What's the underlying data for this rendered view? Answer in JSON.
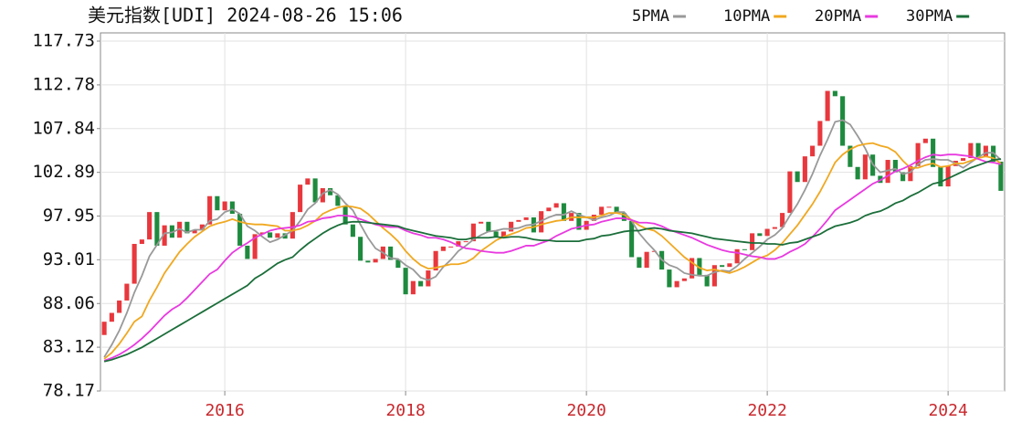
{
  "chart_data": {
    "type": "candlestick",
    "title": "美元指数[UDI] 2024-08-26 15:06",
    "up_color": "#e8383d",
    "down_color": "#1e8a3e",
    "ylim": [
      78.17,
      117.73
    ],
    "yticks": [
      78.17,
      83.12,
      88.06,
      93.01,
      97.95,
      102.89,
      107.84,
      112.78,
      117.73
    ],
    "grid": true,
    "legend": "top-right",
    "categories": [
      null,
      null,
      null,
      null,
      null,
      null,
      null,
      null,
      null,
      null,
      null,
      null,
      null,
      null,
      null,
      null,
      "2016",
      null,
      null,
      null,
      null,
      null,
      null,
      null,
      null,
      null,
      null,
      null,
      null,
      null,
      null,
      null,
      null,
      null,
      null,
      null,
      null,
      null,
      null,
      null,
      "2018",
      null,
      null,
      null,
      null,
      null,
      null,
      null,
      null,
      null,
      null,
      null,
      null,
      null,
      null,
      null,
      null,
      null,
      null,
      null,
      null,
      null,
      null,
      null,
      "2020",
      null,
      null,
      null,
      null,
      null,
      null,
      null,
      null,
      null,
      null,
      null,
      null,
      null,
      null,
      null,
      null,
      null,
      null,
      null,
      null,
      null,
      null,
      null,
      "2022",
      null,
      null,
      null,
      null,
      null,
      null,
      null,
      null,
      null,
      null,
      null,
      null,
      null,
      null,
      null,
      null,
      null,
      null,
      null,
      null,
      null,
      null,
      null,
      "2024",
      null,
      null,
      null,
      null,
      null,
      null,
      null
    ],
    "open": [
      84.5,
      86.0,
      87.0,
      88.4,
      90.3,
      94.8,
      95.3,
      98.4,
      94.6,
      96.9,
      95.5,
      97.3,
      96.0,
      96.4,
      97.0,
      100.2,
      98.6,
      99.6,
      98.2,
      94.6,
      93.1,
      95.9,
      96.1,
      95.5,
      96.0,
      95.4,
      98.4,
      101.5,
      102.2,
      99.5,
      101.1,
      100.3,
      99.1,
      97.0,
      95.6,
      92.9,
      92.7,
      93.1,
      94.5,
      93.0,
      92.1,
      89.1,
      90.6,
      90.0,
      91.8,
      94.0,
      94.5,
      94.5,
      95.1,
      95.1,
      97.1,
      97.3,
      96.2,
      95.6,
      96.2,
      97.3,
      97.5,
      97.8,
      96.1,
      98.5,
      98.9,
      99.4,
      97.4,
      98.3,
      96.4,
      97.4,
      98.1,
      99.0,
      99.0,
      98.3,
      97.4,
      93.3,
      92.1,
      93.9,
      94.0,
      91.9,
      89.9,
      90.6,
      90.9,
      93.2,
      91.3,
      90.0,
      92.4,
      92.2,
      92.6,
      94.2,
      94.1,
      96.0,
      95.7,
      96.5,
      96.7,
      98.3,
      103.0,
      101.8,
      104.7,
      105.9,
      108.7,
      112.1,
      111.5,
      105.9,
      103.5,
      102.1,
      104.9,
      102.5,
      101.7,
      104.3,
      102.9,
      101.9,
      103.6,
      106.2,
      106.7,
      103.5,
      101.3,
      103.6,
      104.2,
      104.5,
      106.2,
      104.6,
      105.9,
      104.1
    ],
    "close": [
      86.0,
      87.0,
      88.4,
      90.3,
      94.8,
      95.3,
      98.4,
      94.6,
      96.9,
      95.5,
      97.3,
      96.0,
      96.4,
      97.0,
      100.2,
      98.6,
      99.6,
      98.2,
      94.6,
      93.1,
      95.9,
      96.1,
      95.5,
      96.0,
      95.4,
      98.4,
      101.5,
      102.2,
      99.5,
      101.1,
      100.3,
      99.1,
      97.0,
      95.6,
      92.9,
      92.7,
      93.1,
      94.5,
      93.0,
      92.1,
      89.1,
      90.6,
      90.0,
      91.8,
      94.0,
      94.5,
      94.5,
      95.1,
      95.1,
      97.1,
      97.3,
      96.2,
      95.6,
      96.2,
      97.3,
      97.5,
      97.8,
      96.1,
      98.5,
      98.9,
      99.4,
      97.4,
      98.3,
      96.4,
      97.4,
      98.1,
      99.0,
      99.0,
      98.3,
      97.4,
      93.3,
      92.1,
      93.9,
      94.0,
      91.9,
      89.9,
      90.6,
      90.9,
      93.2,
      91.3,
      90.0,
      92.4,
      92.2,
      92.6,
      94.2,
      94.1,
      96.0,
      95.7,
      96.5,
      96.7,
      98.3,
      103.0,
      101.8,
      104.7,
      105.9,
      108.7,
      112.1,
      111.5,
      105.9,
      103.5,
      102.1,
      104.9,
      102.5,
      101.7,
      104.3,
      102.9,
      101.9,
      103.6,
      106.2,
      106.7,
      103.5,
      101.3,
      103.6,
      104.2,
      104.5,
      106.2,
      104.6,
      105.9,
      104.1,
      100.8
    ],
    "series": [
      {
        "name": "5PMA",
        "color": "#999999",
        "values": [
          82.0,
          83.4,
          85.0,
          87.0,
          89.3,
          91.2,
          93.4,
          94.7,
          96.0,
          96.1,
          96.5,
          96.1,
          96.4,
          96.4,
          97.4,
          97.6,
          98.4,
          98.7,
          98.2,
          96.8,
          96.3,
          95.6,
          95.0,
          95.3,
          95.8,
          96.3,
          97.4,
          98.7,
          99.4,
          100.5,
          100.9,
          100.4,
          99.4,
          98.6,
          97.0,
          95.5,
          94.3,
          93.8,
          93.2,
          93.1,
          92.4,
          91.9,
          91.0,
          90.7,
          91.1,
          92.2,
          93.0,
          94.0,
          94.6,
          95.3,
          95.8,
          96.2,
          96.3,
          96.5,
          96.5,
          96.6,
          96.9,
          97.0,
          97.4,
          97.8,
          98.1,
          98.1,
          98.5,
          98.1,
          97.8,
          97.5,
          97.8,
          98.0,
          98.4,
          98.4,
          97.4,
          96.0,
          95.0,
          94.1,
          93.0,
          92.4,
          92.1,
          91.5,
          91.3,
          91.2,
          91.2,
          91.6,
          91.8,
          91.7,
          92.3,
          93.1,
          93.8,
          94.5,
          95.3,
          95.8,
          96.6,
          98.0,
          99.3,
          100.9,
          102.7,
          104.8,
          106.6,
          108.6,
          108.8,
          108.3,
          107.0,
          105.6,
          103.8,
          102.9,
          103.1,
          103.3,
          102.7,
          102.9,
          103.8,
          104.3,
          104.4,
          104.3,
          104.3,
          103.9,
          103.4,
          104.0,
          104.6,
          105.1,
          105.1,
          104.3
        ]
      },
      {
        "name": "10PMA",
        "color": "#f0a820",
        "values": [
          81.8,
          82.5,
          83.5,
          84.7,
          86.0,
          86.6,
          88.4,
          89.9,
          91.5,
          92.7,
          93.9,
          94.8,
          95.6,
          96.2,
          96.8,
          97.1,
          97.3,
          97.6,
          97.3,
          97.1,
          97.0,
          97.0,
          96.9,
          96.8,
          96.3,
          96.3,
          96.5,
          96.9,
          97.4,
          98.2,
          98.6,
          98.9,
          99.1,
          99.0,
          98.8,
          98.2,
          97.4,
          96.6,
          95.9,
          95.1,
          94.0,
          93.1,
          92.4,
          92.0,
          92.1,
          92.3,
          92.5,
          92.5,
          92.7,
          93.2,
          94.0,
          94.6,
          95.2,
          95.6,
          95.9,
          96.2,
          96.6,
          96.7,
          97.0,
          97.2,
          97.4,
          97.5,
          97.8,
          97.8,
          97.8,
          97.8,
          98.0,
          98.3,
          98.3,
          98.1,
          97.5,
          96.9,
          96.5,
          96.3,
          95.7,
          94.9,
          94.1,
          93.3,
          92.7,
          92.1,
          91.8,
          91.9,
          91.7,
          91.5,
          91.8,
          92.2,
          92.7,
          93.2,
          93.5,
          94.1,
          94.9,
          95.9,
          96.9,
          98.1,
          99.3,
          100.7,
          102.3,
          104.0,
          104.9,
          105.5,
          105.9,
          106.1,
          106.2,
          105.9,
          105.7,
          105.2,
          104.2,
          103.4,
          103.4,
          103.7,
          103.9,
          103.5,
          103.6,
          103.9,
          103.9,
          104.2,
          104.5,
          104.7,
          104.5,
          103.9
        ]
      },
      {
        "name": "20PMA",
        "color": "#e83ae0",
        "values": [
          81.6,
          81.9,
          82.3,
          82.8,
          83.4,
          84.1,
          84.9,
          85.8,
          86.7,
          87.4,
          87.9,
          88.7,
          89.6,
          90.5,
          91.4,
          91.9,
          92.9,
          93.8,
          94.4,
          94.9,
          95.5,
          95.9,
          96.3,
          96.5,
          96.6,
          96.7,
          96.9,
          97.3,
          97.4,
          97.7,
          97.8,
          98.0,
          98.0,
          97.9,
          97.6,
          97.3,
          97.0,
          96.8,
          96.7,
          96.7,
          96.3,
          96.0,
          95.8,
          95.5,
          95.5,
          95.3,
          95.0,
          94.6,
          94.3,
          94.2,
          94.0,
          93.9,
          93.8,
          93.8,
          94.0,
          94.3,
          94.6,
          94.6,
          94.9,
          95.2,
          95.7,
          96.1,
          96.5,
          96.7,
          96.9,
          97.0,
          97.3,
          97.5,
          97.7,
          97.7,
          97.5,
          97.2,
          97.2,
          97.1,
          96.8,
          96.4,
          96.1,
          95.8,
          95.5,
          95.1,
          94.7,
          94.4,
          94.1,
          93.9,
          93.8,
          93.6,
          93.4,
          93.3,
          93.1,
          93.1,
          93.4,
          93.9,
          94.3,
          94.8,
          95.6,
          96.5,
          97.5,
          98.6,
          99.2,
          99.8,
          100.4,
          101.0,
          101.6,
          102.0,
          102.5,
          103.0,
          103.3,
          103.7,
          104.2,
          104.6,
          104.9,
          104.8,
          104.9,
          104.9,
          104.8,
          104.7,
          104.4,
          104.1,
          104.0,
          103.8
        ]
      },
      {
        "name": "30PMA",
        "color": "#1b6e3a",
        "values": [
          81.5,
          81.7,
          82.0,
          82.3,
          82.7,
          83.1,
          83.6,
          84.1,
          84.6,
          85.1,
          85.6,
          86.1,
          86.6,
          87.1,
          87.6,
          88.1,
          88.6,
          89.1,
          89.6,
          90.1,
          90.9,
          91.4,
          92.0,
          92.6,
          93.0,
          93.3,
          94.1,
          94.8,
          95.4,
          96.0,
          96.5,
          96.9,
          97.2,
          97.3,
          97.3,
          97.2,
          97.1,
          97.0,
          96.9,
          96.8,
          96.5,
          96.3,
          96.1,
          95.9,
          95.7,
          95.6,
          95.5,
          95.3,
          95.3,
          95.5,
          95.5,
          95.5,
          95.6,
          95.5,
          95.6,
          95.6,
          95.5,
          95.3,
          95.2,
          95.2,
          95.1,
          95.1,
          95.1,
          95.1,
          95.3,
          95.4,
          95.7,
          95.8,
          96.0,
          96.2,
          96.3,
          96.3,
          96.5,
          96.6,
          96.5,
          96.3,
          96.2,
          96.1,
          96.0,
          95.8,
          95.6,
          95.4,
          95.3,
          95.2,
          95.1,
          95.0,
          94.9,
          94.9,
          94.8,
          94.8,
          94.7,
          94.9,
          95.0,
          95.3,
          95.6,
          95.9,
          96.4,
          96.8,
          97.0,
          97.2,
          97.5,
          98.0,
          98.3,
          98.5,
          98.9,
          99.4,
          99.7,
          100.2,
          100.6,
          101.1,
          101.6,
          101.8,
          102.2,
          102.6,
          103.0,
          103.4,
          103.7,
          104.0,
          104.3,
          104.4
        ]
      }
    ]
  }
}
